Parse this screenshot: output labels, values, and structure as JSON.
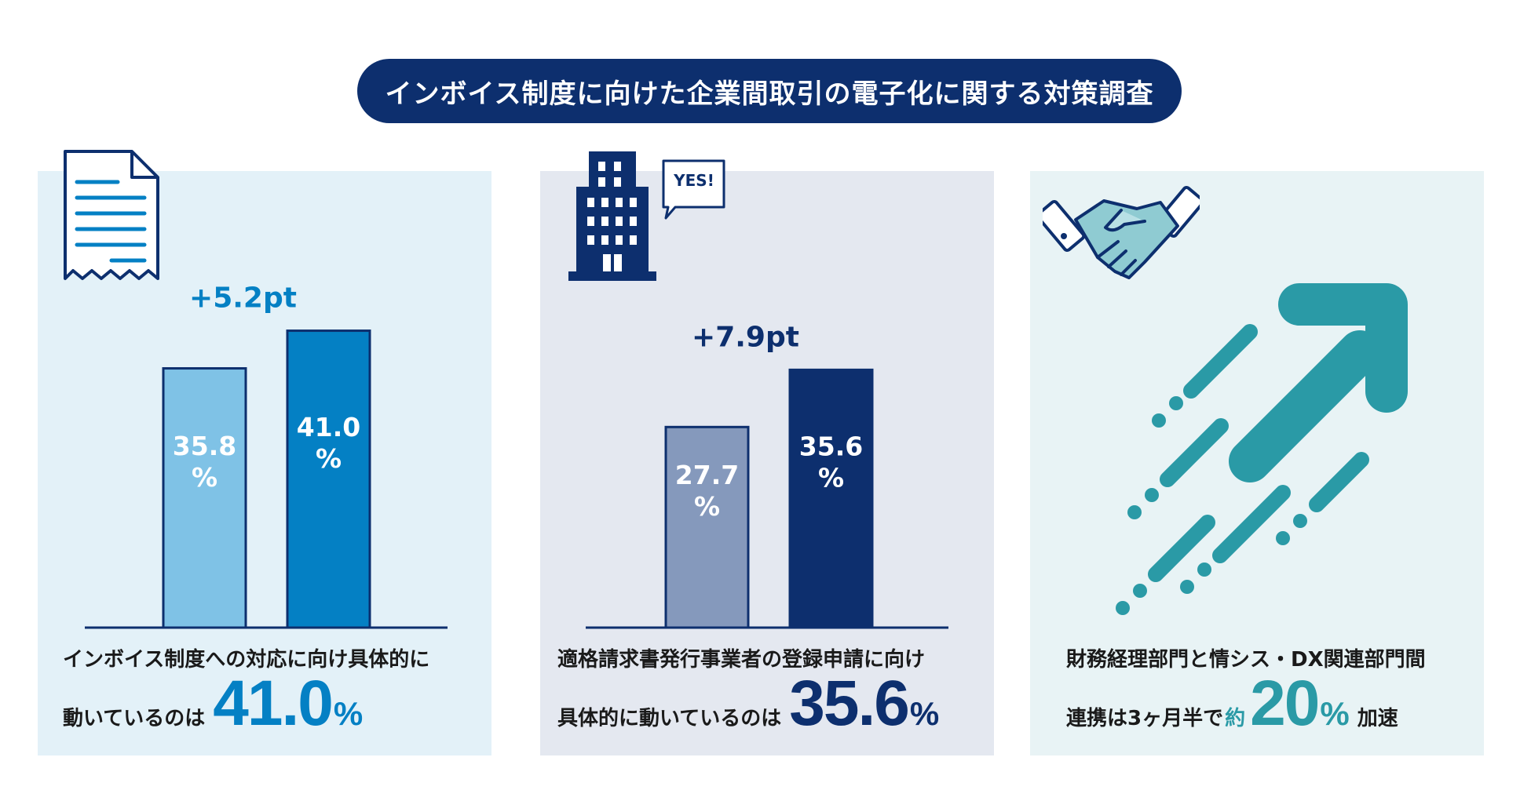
{
  "header": {
    "title": "インボイス制度に向けた企業間取引の電子化に関する対策調査"
  },
  "colors": {
    "navy": "#0d2f6e",
    "blue": "#0480c4",
    "light_blue": "#7fc2e6",
    "slate": "#8599bc",
    "teal": "#2a9aa6"
  },
  "chart_data": [
    {
      "type": "bar",
      "categories": [
        "",
        ""
      ],
      "values": [
        35.8,
        41.0
      ],
      "value_labels": [
        "35.8",
        "41.0"
      ],
      "unit": "%",
      "difference_label": "+5.2pt",
      "bar_colors": [
        "#7fc2e6",
        "#0480c4"
      ],
      "ylim": [
        0,
        52
      ],
      "caption_line1": "インボイス制度への対応に向け具体的に",
      "caption_line2": "動いているのは",
      "highlight_value": "41.0",
      "highlight_unit": "%",
      "highlight_color": "#0480c4",
      "icon": "receipt-icon"
    },
    {
      "type": "bar",
      "categories": [
        "",
        ""
      ],
      "values": [
        27.7,
        35.6
      ],
      "value_labels": [
        "27.7",
        "35.6"
      ],
      "unit": "%",
      "difference_label": "+7.9pt",
      "bar_colors": [
        "#8599bc",
        "#0d2f6e"
      ],
      "ylim": [
        0,
        52
      ],
      "caption_line1": "適格請求書発行事業者の登録申請に向け",
      "caption_line2": "具体的に動いているのは",
      "highlight_value": "35.6",
      "highlight_unit": "%",
      "highlight_color": "#0d2f6e",
      "icon": "building-icon",
      "speech_bubble": "YES!"
    }
  ],
  "panel3": {
    "caption_line1": "財務経理部門と情シス・DX関連部門間",
    "caption_line2_pre": "連携は3ヶ月半で",
    "approx": "約",
    "highlight_value": "20",
    "highlight_unit": "%",
    "suffix": "加速",
    "highlight_color": "#2a9aa6",
    "icons": [
      "handshake-icon",
      "up-right-arrow-icon"
    ]
  }
}
